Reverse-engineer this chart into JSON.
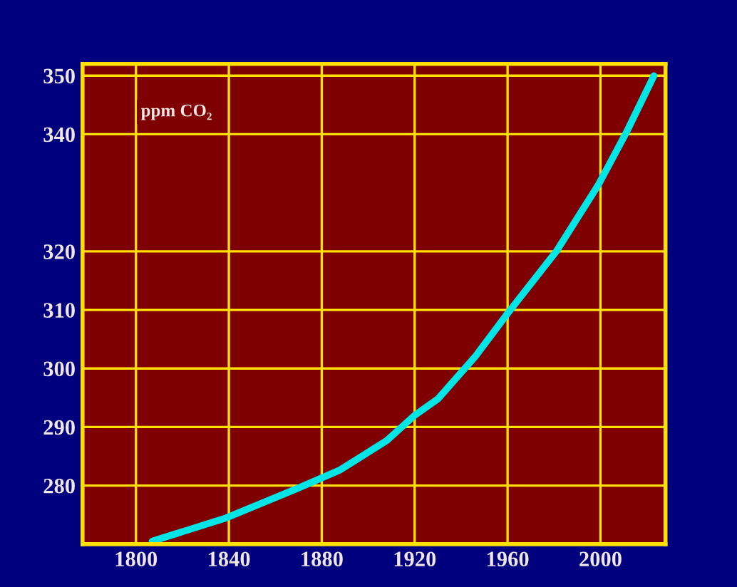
{
  "chart_data": {
    "type": "line",
    "ylabel": "ppm CO₂",
    "x": [
      1807,
      1839,
      1870,
      1888,
      1908,
      1920,
      1930,
      1946,
      1960,
      1981,
      1999,
      2011,
      2023
    ],
    "series": [
      {
        "color": "#00e5e5",
        "values": [
          270.5,
          274.5,
          279.6,
          282.7,
          287.7,
          292,
          294.8,
          302,
          309.4,
          320,
          331.3,
          340.2,
          350
        ]
      }
    ],
    "xlim": [
      1777,
      2028
    ],
    "xticks": [
      1800,
      1840,
      1880,
      1920,
      1960,
      2000
    ],
    "ylim": [
      270,
      352
    ],
    "yticks": [
      280,
      290,
      300,
      310,
      320,
      340,
      350
    ],
    "grid": true,
    "marker": "none",
    "line_style": "solid",
    "legend": false
  }
}
